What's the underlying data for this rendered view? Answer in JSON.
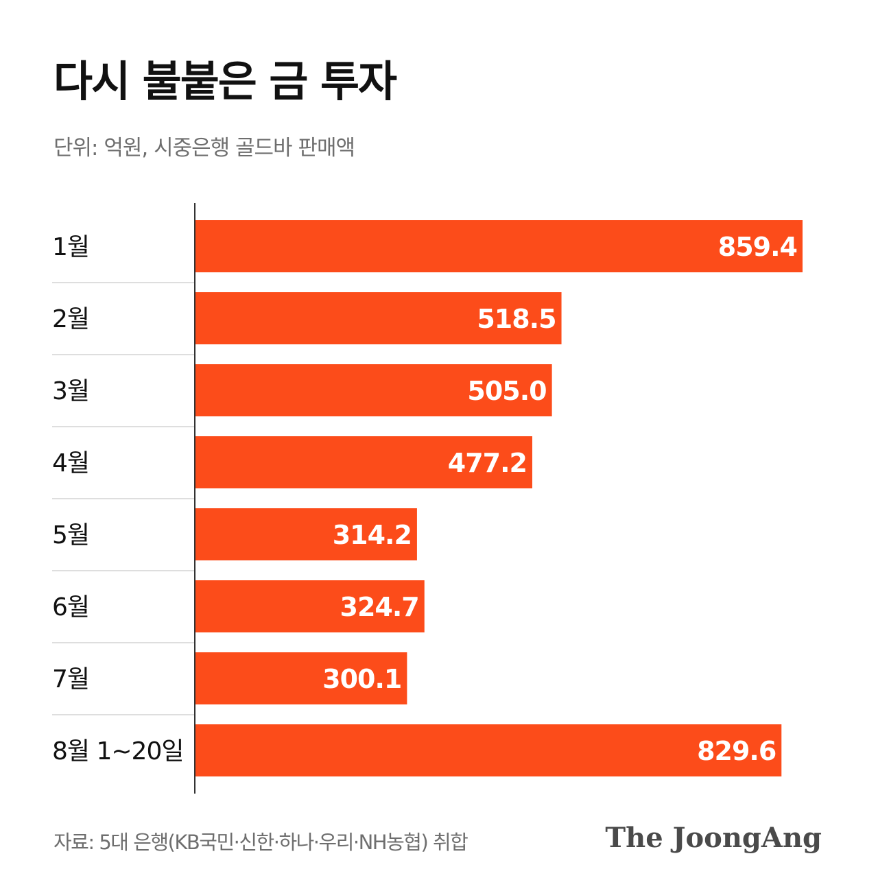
{
  "header": {
    "title": "다시 불붙은 금 투자",
    "subtitle": "단위: 억원, 시중은행 골드바 판매액"
  },
  "footer": {
    "source": "자료: 5대 은행(KB국민·신한·하나·우리·NH농협) 취합",
    "logo": "The JoongAng"
  },
  "colors": {
    "bar": "#fc4c1a",
    "bar_label": "#ffffff",
    "category_label": "#111111",
    "separator": "#d4d4d4",
    "axis": "#333333"
  },
  "chart_data": {
    "type": "bar",
    "orientation": "horizontal",
    "categories": [
      "1월",
      "2월",
      "3월",
      "4월",
      "5월",
      "6월",
      "7월",
      "8월 1~20일"
    ],
    "values": [
      859.4,
      518.5,
      505.0,
      477.2,
      314.2,
      324.7,
      300.1,
      829.6
    ],
    "value_labels": [
      "859.4",
      "518.5",
      "505.0",
      "477.2",
      "314.2",
      "324.7",
      "300.1",
      "829.6"
    ],
    "title": "다시 불붙은 금 투자",
    "subtitle": "단위: 억원, 시중은행 골드바 판매액",
    "xlim": [
      0,
      859.4
    ],
    "grid": false,
    "legend": "none"
  }
}
